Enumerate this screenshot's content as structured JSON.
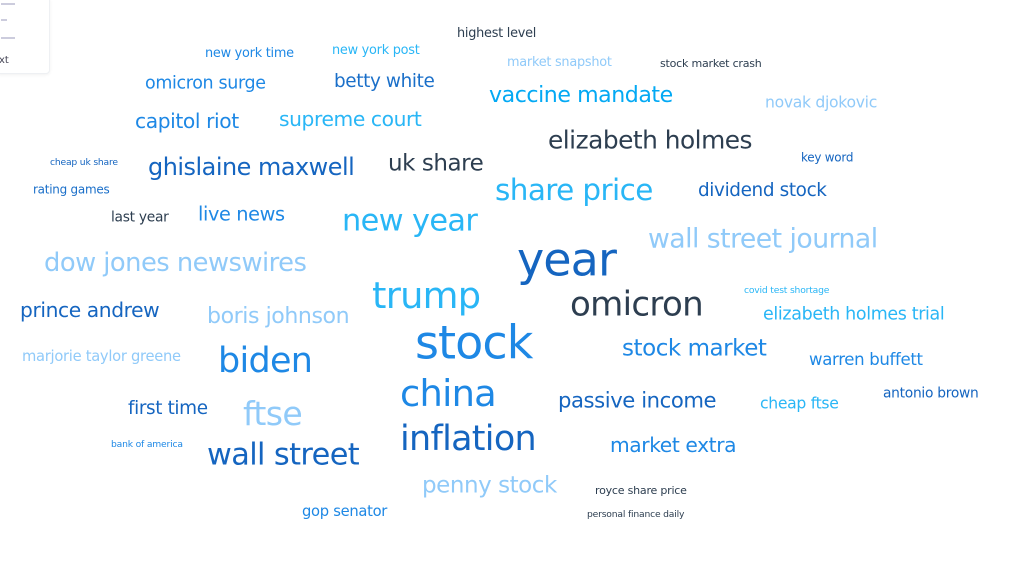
{
  "sidebar": {
    "fragment_label": "xt"
  },
  "chart_data": {
    "type": "wordcloud",
    "title": "",
    "words": [
      {
        "text": "new york time",
        "weight": 14,
        "color": "#1e88e5"
      },
      {
        "text": "new york post",
        "weight": 14,
        "color": "#29b6f6"
      },
      {
        "text": "highest level",
        "weight": 14,
        "color": "#2d3e50"
      },
      {
        "text": "market snapshot",
        "weight": 14,
        "color": "#90caf9"
      },
      {
        "text": "stock market crash",
        "weight": 12,
        "color": "#2d3e50"
      },
      {
        "text": "omicron surge",
        "weight": 19,
        "color": "#1e88e5"
      },
      {
        "text": "betty white",
        "weight": 20,
        "color": "#1a6fc9"
      },
      {
        "text": "vaccine mandate",
        "weight": 24,
        "color": "#03a9f4"
      },
      {
        "text": "novak djokovic",
        "weight": 17,
        "color": "#90caf9"
      },
      {
        "text": "capitol riot",
        "weight": 22,
        "color": "#1e88e5"
      },
      {
        "text": "supreme court",
        "weight": 22,
        "color": "#29b6f6"
      },
      {
        "text": "elizabeth holmes",
        "weight": 27,
        "color": "#2d3e50"
      },
      {
        "text": "key word",
        "weight": 13,
        "color": "#1565c0"
      },
      {
        "text": "cheap uk share",
        "weight": 10,
        "color": "#1565c0"
      },
      {
        "text": "ghislaine maxwell",
        "weight": 26,
        "color": "#1565c0"
      },
      {
        "text": "uk share",
        "weight": 25,
        "color": "#2d3e50"
      },
      {
        "text": "rating games",
        "weight": 13,
        "color": "#1a6fc9"
      },
      {
        "text": "share price",
        "weight": 32,
        "color": "#29b6f6"
      },
      {
        "text": "dividend stock",
        "weight": 20,
        "color": "#1565c0"
      },
      {
        "text": "last year",
        "weight": 15,
        "color": "#2d3e50"
      },
      {
        "text": "live news",
        "weight": 21,
        "color": "#1e88e5"
      },
      {
        "text": "new year",
        "weight": 33,
        "color": "#29b6f6"
      },
      {
        "text": "wall street journal",
        "weight": 29,
        "color": "#90caf9"
      },
      {
        "text": "year",
        "weight": 50,
        "color": "#1565c0"
      },
      {
        "text": "dow jones newswires",
        "weight": 28,
        "color": "#90caf9"
      },
      {
        "text": "trump",
        "weight": 40,
        "color": "#29b6f6"
      },
      {
        "text": "covid test shortage",
        "weight": 10,
        "color": "#29b6f6"
      },
      {
        "text": "omicron",
        "weight": 37,
        "color": "#2d3e50"
      },
      {
        "text": "prince andrew",
        "weight": 22,
        "color": "#1565c0"
      },
      {
        "text": "boris johnson",
        "weight": 24,
        "color": "#90caf9"
      },
      {
        "text": "elizabeth holmes trial",
        "weight": 19,
        "color": "#29b6f6"
      },
      {
        "text": "stock",
        "weight": 50,
        "color": "#1e88e5"
      },
      {
        "text": "marjorie taylor greene",
        "weight": 16,
        "color": "#90caf9"
      },
      {
        "text": "biden",
        "weight": 38,
        "color": "#1e88e5"
      },
      {
        "text": "stock market",
        "weight": 25,
        "color": "#1e88e5"
      },
      {
        "text": "warren buffett",
        "weight": 18,
        "color": "#1e88e5"
      },
      {
        "text": "china",
        "weight": 40,
        "color": "#1e88e5"
      },
      {
        "text": "passive income",
        "weight": 23,
        "color": "#1565c0"
      },
      {
        "text": "antonio brown",
        "weight": 15,
        "color": "#1565c0"
      },
      {
        "text": "first time",
        "weight": 20,
        "color": "#1565c0"
      },
      {
        "text": "ftse",
        "weight": 36,
        "color": "#90caf9"
      },
      {
        "text": "cheap ftse",
        "weight": 17,
        "color": "#29b6f6"
      },
      {
        "text": "bank of america",
        "weight": 10,
        "color": "#1e88e5"
      },
      {
        "text": "inflation",
        "weight": 38,
        "color": "#1565c0"
      },
      {
        "text": "market extra",
        "weight": 22,
        "color": "#1e88e5"
      },
      {
        "text": "wall street",
        "weight": 33,
        "color": "#1565c0"
      },
      {
        "text": "penny stock",
        "weight": 25,
        "color": "#90caf9"
      },
      {
        "text": "royce share price",
        "weight": 12,
        "color": "#2d3e50"
      },
      {
        "text": "gop senator",
        "weight": 16,
        "color": "#1e88e5"
      },
      {
        "text": "personal finance daily",
        "weight": 10,
        "color": "#2d3e50"
      }
    ]
  }
}
